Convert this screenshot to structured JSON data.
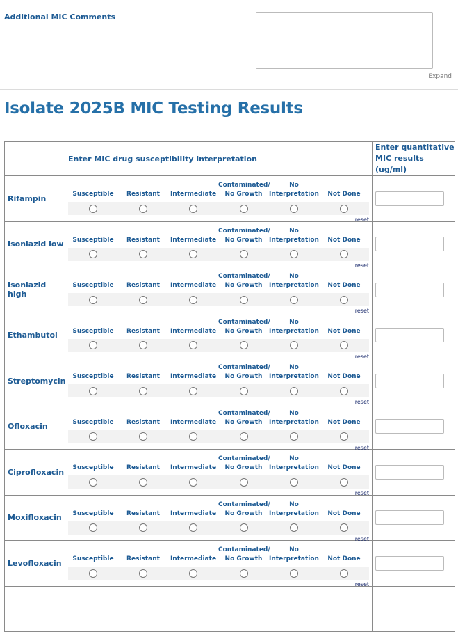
{
  "comments": {
    "label": "Additional MIC Comments",
    "value": "",
    "expand": "Expand"
  },
  "title": "Isolate 2025B MIC Testing Results",
  "table": {
    "header_interp": "Enter MIC drug susceptibility interpretation",
    "header_quant": "Enter quantitative MIC results (ug/ml)",
    "options": [
      {
        "line1": "",
        "line2": "Susceptible"
      },
      {
        "line1": "",
        "line2": "Resistant"
      },
      {
        "line1": "",
        "line2": "Intermediate"
      },
      {
        "line1": "Contaminated/",
        "line2": "No Growth"
      },
      {
        "line1": "No",
        "line2": "Interpretation"
      },
      {
        "line1": "",
        "line2": "Not Done"
      }
    ],
    "reset": "reset",
    "drugs": [
      "Rifampin",
      "Isoniazid low",
      "Isoniazid high",
      "Ethambutol",
      "Streptomycin",
      "Ofloxacin",
      "Ciprofloxacin",
      "Moxifloxacin",
      "Levofloxacin"
    ]
  }
}
